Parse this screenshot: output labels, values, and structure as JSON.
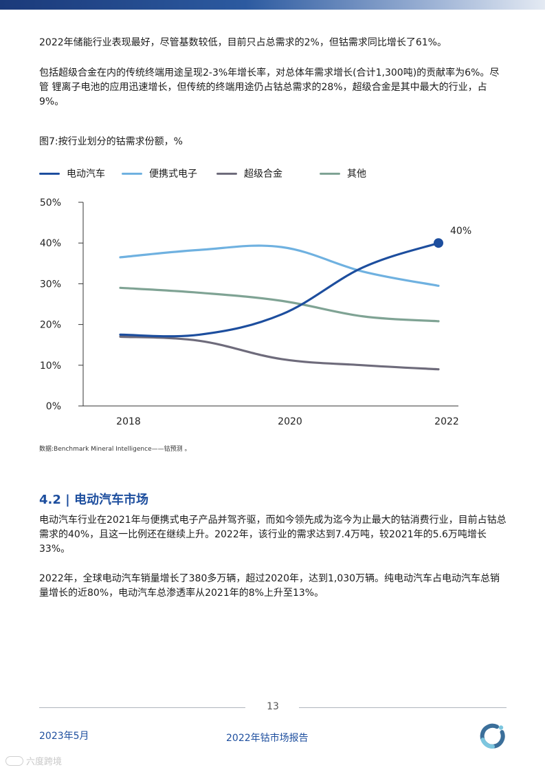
{
  "paragraphs": {
    "p1": "2022年储能行业表现最好，尽管基数较低，目前只占总需求的2%，但钴需求同比增长了61%。",
    "p2": "包括超级合金在内的传统终端用途呈现2-3%年增长率，对总体年需求增长(合计1,300吨)的贡献率为6%。尽管  锂离子电池的应用迅速增长，但传统的终端用途仍占钴总需求的28%，超级合金是其中最大的行业，占9%。",
    "p3": "电动汽车行业在2021年与便携式电子产品并驾齐驱，而如今领先成为迄今为止最大的钴消费行业，目前占钴总需求的40%，且这一比例还在继续上升。2022年，该行业的需求达到7.4万吨，较2021年的5.6万吨增长33%。",
    "p4": "2022年，全球电动汽车销量增长了380多万辆，超过2020年，达到1,030万辆。纯电动汽车占电动汽车总销量增长的近80%，电动汽车总渗透率从2021年的8%上升至13%。"
  },
  "figure": {
    "title": "图7:按行业划分的钴需求份额，%",
    "source": "数据:Benchmark Mineral Intelligence——钴预测 。"
  },
  "chart_data": {
    "type": "line",
    "title": "图7:按行业划分的钴需求份额，%",
    "x": [
      2018,
      2019,
      2020,
      2021,
      2022
    ],
    "x_ticks": [
      "2018",
      "2020",
      "2022"
    ],
    "y_ticks": [
      "0%",
      "10%",
      "20%",
      "30%",
      "40%",
      "50%"
    ],
    "ylim": [
      0,
      50
    ],
    "series": [
      {
        "name": "电动汽车",
        "color": "#1d4e9e",
        "values": [
          17.5,
          17.5,
          22.5,
          34,
          40
        ]
      },
      {
        "name": "便携式电子",
        "color": "#6fb1e0",
        "values": [
          36.5,
          38.3,
          39,
          33,
          29.5
        ]
      },
      {
        "name": "超级合金",
        "color": "#6e6b7b",
        "values": [
          17,
          16,
          11.5,
          10,
          9
        ]
      },
      {
        "name": "其他",
        "color": "#7fa394",
        "values": [
          29,
          27.8,
          25.8,
          22,
          20.8
        ]
      }
    ],
    "annotation": {
      "series": "电动汽车",
      "label": "40%"
    },
    "grid": false,
    "legend": "top-left"
  },
  "section": {
    "title": "4.2 | 电动汽车市场"
  },
  "footer": {
    "page": "13",
    "date": "2023年5月",
    "report": "2022年钴市场报告",
    "watermark": "六度跨境"
  }
}
